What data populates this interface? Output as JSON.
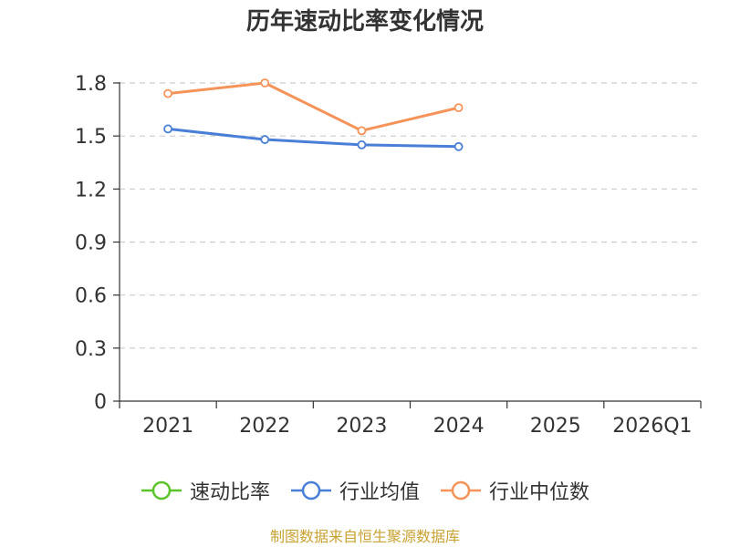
{
  "chart_data": {
    "type": "line",
    "title": "历年速动比率变化情况",
    "categories": [
      "2021",
      "2022",
      "2023",
      "2024",
      "2025",
      "2026Q1"
    ],
    "yticks": [
      "0",
      "0.3",
      "0.6",
      "0.9",
      "1.2",
      "1.5",
      "1.8"
    ],
    "ylim": [
      0,
      1.8
    ],
    "grid": true,
    "legend_position": "bottom",
    "series": [
      {
        "name": "速动比率",
        "color": "#5bc429",
        "values": [
          null,
          null,
          null,
          null,
          null,
          null
        ]
      },
      {
        "name": "行业均值",
        "color": "#4a7fd8",
        "values": [
          1.54,
          1.48,
          1.45,
          1.44,
          null,
          null
        ]
      },
      {
        "name": "行业中位数",
        "color": "#f59359",
        "values": [
          1.74,
          1.8,
          1.53,
          1.66,
          null,
          null
        ]
      }
    ],
    "source_note": "制图数据来自恒生聚源数据库",
    "source_color": "#c8a232"
  }
}
